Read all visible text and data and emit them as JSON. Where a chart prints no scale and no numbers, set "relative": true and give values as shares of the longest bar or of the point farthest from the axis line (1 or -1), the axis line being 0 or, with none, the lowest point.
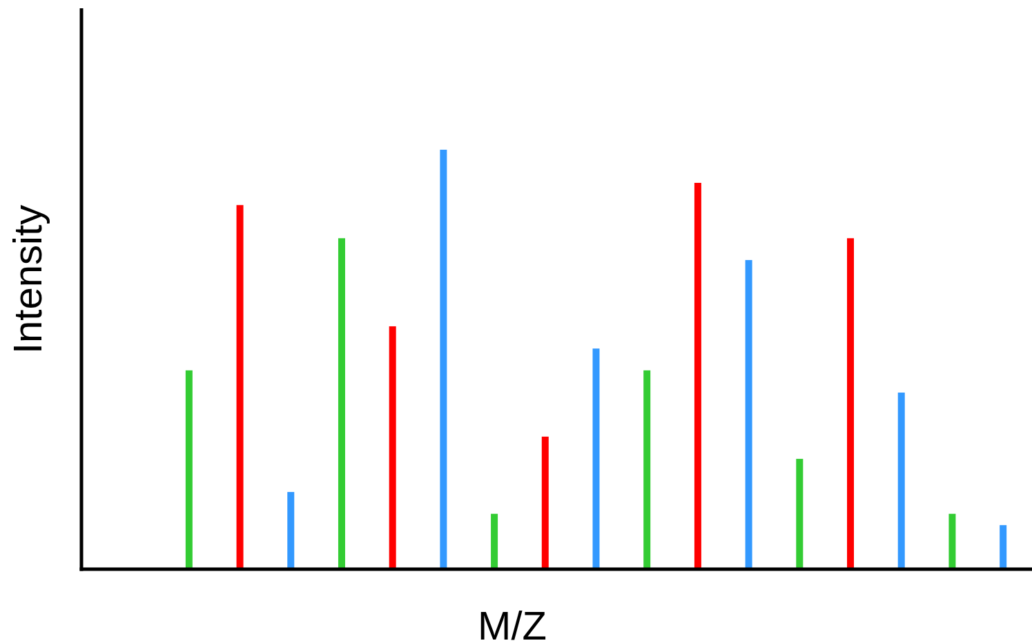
{
  "chart_data": {
    "type": "bar",
    "relative": true,
    "xlabel": "M/Z",
    "ylabel": "Intensity",
    "categories": [
      null,
      null,
      null,
      null,
      null,
      null,
      null,
      null,
      null,
      null,
      null,
      null,
      null,
      null,
      null,
      null,
      null
    ],
    "values": [
      0.474,
      0.868,
      0.184,
      0.789,
      0.579,
      1,
      0.132,
      0.316,
      0.526,
      0.474,
      0.921,
      0.737,
      0.263,
      0.789,
      0.421,
      0.132,
      0.105
    ],
    "colors": [
      "#33cc33",
      "#ff0000",
      "#3399ff",
      "#33cc33",
      "#ff0000",
      "#3399ff",
      "#33cc33",
      "#ff0000",
      "#3399ff",
      "#33cc33",
      "#ff0000",
      "#3399ff",
      "#33cc33",
      "#ff0000",
      "#3399ff",
      "#33cc33",
      "#3399ff"
    ]
  }
}
